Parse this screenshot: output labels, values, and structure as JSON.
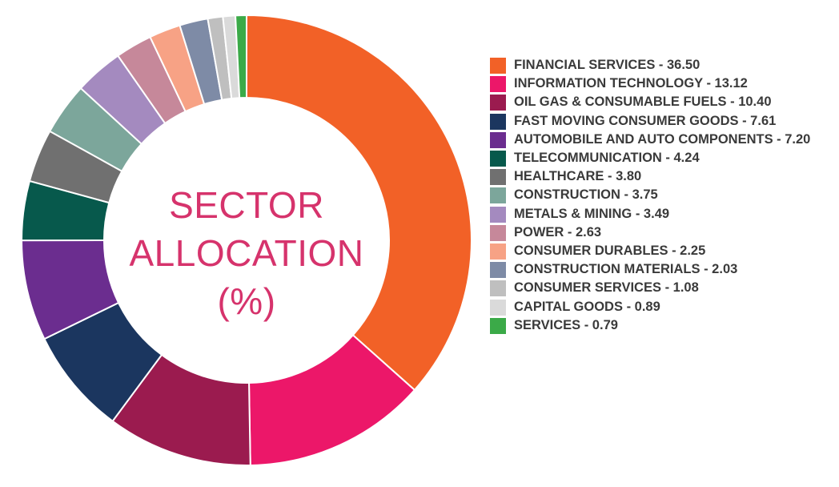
{
  "chart_data": {
    "type": "pie",
    "center_title": [
      "SECTOR",
      "ALLOCATION",
      "(%)"
    ],
    "slices": [
      {
        "label": "FINANCIAL SERVICES - 36.50",
        "value": 36.5,
        "color": "#F26127"
      },
      {
        "label": "INFORMATION TECHNOLOGY - 13.12",
        "value": 13.12,
        "color": "#EC1769"
      },
      {
        "label": "OIL GAS & CONSUMABLE FUELS - 10.40",
        "value": 10.4,
        "color": "#9B1B4F"
      },
      {
        "label": "FAST MOVING CONSUMER GOODS - 7.61",
        "value": 7.61,
        "color": "#1B365F"
      },
      {
        "label": "AUTOMOBILE AND AUTO COMPONENTS - 7.20",
        "value": 7.2,
        "color": "#6B2D8F"
      },
      {
        "label": "TELECOMMUNICATION - 4.24",
        "value": 4.24,
        "color": "#07594C"
      },
      {
        "label": "HEALTHCARE - 3.80",
        "value": 3.8,
        "color": "#707070"
      },
      {
        "label": "CONSTRUCTION - 3.75",
        "value": 3.75,
        "color": "#7CA69B"
      },
      {
        "label": "METALS & MINING - 3.49",
        "value": 3.49,
        "color": "#A48ABF"
      },
      {
        "label": "POWER - 2.63",
        "value": 2.63,
        "color": "#C6889A"
      },
      {
        "label": "CONSUMER DURABLES - 2.25",
        "value": 2.25,
        "color": "#F7A285"
      },
      {
        "label": "CONSTRUCTION MATERIALS - 2.03",
        "value": 2.03,
        "color": "#7E8BA6"
      },
      {
        "label": "CONSUMER SERVICES - 1.08",
        "value": 1.08,
        "color": "#BFBFBF"
      },
      {
        "label": "CAPITAL GOODS - 0.89",
        "value": 0.89,
        "color": "#DADADA"
      },
      {
        "label": "SERVICES - 0.79",
        "value": 0.79,
        "color": "#3BAA48"
      }
    ]
  }
}
